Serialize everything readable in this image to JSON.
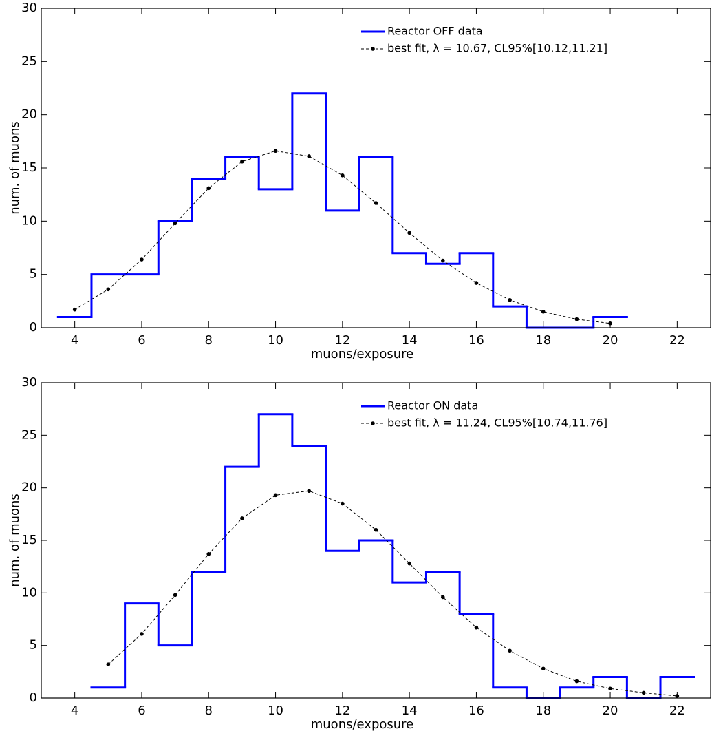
{
  "chart_data": [
    {
      "type": "histogram",
      "xlabel": "muons/exposure",
      "ylabel": "num. of muons",
      "xlim": [
        3,
        23
      ],
      "xticks": [
        4,
        6,
        8,
        10,
        12,
        14,
        16,
        18,
        20,
        22
      ],
      "ylim": [
        0,
        30
      ],
      "yticks": [
        0,
        5,
        10,
        15,
        20,
        25,
        30
      ],
      "legend": "upper right",
      "series": [
        {
          "name": "Reactor OFF data",
          "type": "histogram",
          "color": "#0000ff",
          "bins": [
            3.5,
            4.5,
            5.5,
            6.5,
            7.5,
            8.5,
            9.5,
            10.5,
            11.5,
            12.5,
            13.5,
            14.5,
            15.5,
            16.5,
            17.5,
            18.5,
            19.5,
            20.5
          ],
          "values": [
            1,
            5,
            5,
            10,
            14,
            16,
            13,
            22,
            11,
            16,
            7,
            6,
            7,
            2,
            0,
            0,
            1
          ]
        },
        {
          "name": "best fit, λ = 10.67, CL95%[10.12,11.21]",
          "type": "line",
          "color": "#000000",
          "x": [
            4,
            5,
            6,
            7,
            8,
            9,
            10,
            11,
            12,
            13,
            14,
            15,
            16,
            17,
            18,
            19,
            20
          ],
          "values": [
            1.7,
            3.6,
            6.4,
            9.8,
            13.1,
            15.6,
            16.6,
            16.1,
            14.3,
            11.7,
            8.9,
            6.3,
            4.2,
            2.6,
            1.5,
            0.8,
            0.4
          ]
        }
      ]
    },
    {
      "type": "histogram",
      "xlabel": "muons/exposure",
      "ylabel": "num. of muons",
      "xlim": [
        3,
        23
      ],
      "xticks": [
        4,
        6,
        8,
        10,
        12,
        14,
        16,
        18,
        20,
        22
      ],
      "ylim": [
        0,
        30
      ],
      "yticks": [
        0,
        5,
        10,
        15,
        20,
        25,
        30
      ],
      "legend": "upper right",
      "series": [
        {
          "name": "Reactor ON data",
          "type": "histogram",
          "color": "#0000ff",
          "bins": [
            4.5,
            5.5,
            6.5,
            7.5,
            8.5,
            9.5,
            10.5,
            11.5,
            12.5,
            13.5,
            14.5,
            15.5,
            16.5,
            17.5,
            18.5,
            19.5,
            20.5,
            21.5,
            22.5
          ],
          "values": [
            1,
            9,
            5,
            12,
            22,
            27,
            24,
            14,
            15,
            11,
            12,
            8,
            1,
            0,
            1,
            2,
            0,
            2
          ]
        },
        {
          "name": "best fit, λ = 11.24, CL95%[10.74,11.76]",
          "type": "line",
          "color": "#000000",
          "x": [
            5,
            6,
            7,
            8,
            9,
            10,
            11,
            12,
            13,
            14,
            15,
            16,
            17,
            18,
            19,
            20,
            21,
            22
          ],
          "values": [
            3.2,
            6.1,
            9.8,
            13.7,
            17.1,
            19.3,
            19.7,
            18.5,
            16.0,
            12.8,
            9.6,
            6.7,
            4.5,
            2.8,
            1.6,
            0.9,
            0.5,
            0.2
          ]
        }
      ]
    }
  ]
}
